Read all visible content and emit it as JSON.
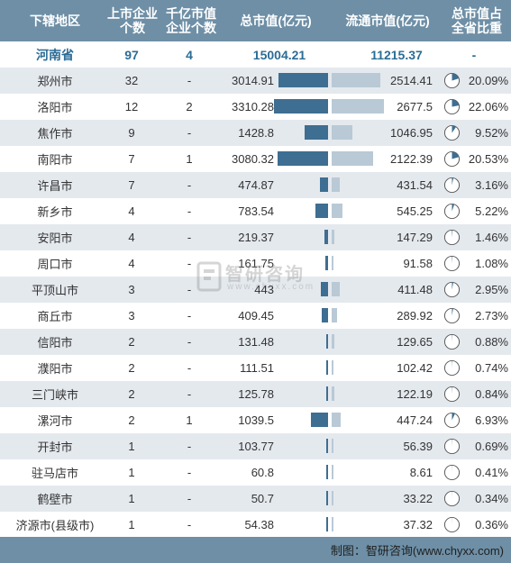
{
  "header": {
    "region": "下辖地区",
    "listed": "上市企业\n个数",
    "big": "千亿市值\n企业个数",
    "mv": "总市值(亿元)",
    "fmv": "流通市值(亿元)",
    "share": "总市值占\n全省比重"
  },
  "total": {
    "region": "河南省",
    "listed": "97",
    "big": "4",
    "mv": "15004.21",
    "fmv": "11215.37",
    "share": "-"
  },
  "rows": [
    {
      "region": "郑州市",
      "listed": "32",
      "big": "-",
      "mv": "3014.91",
      "fmv": "2514.41",
      "share": "20.09%",
      "mv_val": 3014.91,
      "fmv_val": 2514.41,
      "share_val": 20.09
    },
    {
      "region": "洛阳市",
      "listed": "12",
      "big": "2",
      "mv": "3310.28",
      "fmv": "2677.5",
      "share": "22.06%",
      "mv_val": 3310.28,
      "fmv_val": 2677.5,
      "share_val": 22.06
    },
    {
      "region": "焦作市",
      "listed": "9",
      "big": "-",
      "mv": "1428.8",
      "fmv": "1046.95",
      "share": "9.52%",
      "mv_val": 1428.8,
      "fmv_val": 1046.95,
      "share_val": 9.52
    },
    {
      "region": "南阳市",
      "listed": "7",
      "big": "1",
      "mv": "3080.32",
      "fmv": "2122.39",
      "share": "20.53%",
      "mv_val": 3080.32,
      "fmv_val": 2122.39,
      "share_val": 20.53
    },
    {
      "region": "许昌市",
      "listed": "7",
      "big": "-",
      "mv": "474.87",
      "fmv": "431.54",
      "share": "3.16%",
      "mv_val": 474.87,
      "fmv_val": 431.54,
      "share_val": 3.16
    },
    {
      "region": "新乡市",
      "listed": "4",
      "big": "-",
      "mv": "783.54",
      "fmv": "545.25",
      "share": "5.22%",
      "mv_val": 783.54,
      "fmv_val": 545.25,
      "share_val": 5.22
    },
    {
      "region": "安阳市",
      "listed": "4",
      "big": "-",
      "mv": "219.37",
      "fmv": "147.29",
      "share": "1.46%",
      "mv_val": 219.37,
      "fmv_val": 147.29,
      "share_val": 1.46
    },
    {
      "region": "周口市",
      "listed": "4",
      "big": "-",
      "mv": "161.75",
      "fmv": "91.58",
      "share": "1.08%",
      "mv_val": 161.75,
      "fmv_val": 91.58,
      "share_val": 1.08
    },
    {
      "region": "平顶山市",
      "listed": "3",
      "big": "-",
      "mv": "443",
      "fmv": "411.48",
      "share": "2.95%",
      "mv_val": 443,
      "fmv_val": 411.48,
      "share_val": 2.95
    },
    {
      "region": "商丘市",
      "listed": "3",
      "big": "-",
      "mv": "409.45",
      "fmv": "289.92",
      "share": "2.73%",
      "mv_val": 409.45,
      "fmv_val": 289.92,
      "share_val": 2.73
    },
    {
      "region": "信阳市",
      "listed": "2",
      "big": "-",
      "mv": "131.48",
      "fmv": "129.65",
      "share": "0.88%",
      "mv_val": 131.48,
      "fmv_val": 129.65,
      "share_val": 0.88
    },
    {
      "region": "濮阳市",
      "listed": "2",
      "big": "-",
      "mv": "111.51",
      "fmv": "102.42",
      "share": "0.74%",
      "mv_val": 111.51,
      "fmv_val": 102.42,
      "share_val": 0.74
    },
    {
      "region": "三门峡市",
      "listed": "2",
      "big": "-",
      "mv": "125.78",
      "fmv": "122.19",
      "share": "0.84%",
      "mv_val": 125.78,
      "fmv_val": 122.19,
      "share_val": 0.84
    },
    {
      "region": "漯河市",
      "listed": "2",
      "big": "1",
      "mv": "1039.5",
      "fmv": "447.24",
      "share": "6.93%",
      "mv_val": 1039.5,
      "fmv_val": 447.24,
      "share_val": 6.93
    },
    {
      "region": "开封市",
      "listed": "1",
      "big": "-",
      "mv": "103.77",
      "fmv": "56.39",
      "share": "0.69%",
      "mv_val": 103.77,
      "fmv_val": 56.39,
      "share_val": 0.69
    },
    {
      "region": "驻马店市",
      "listed": "1",
      "big": "-",
      "mv": "60.8",
      "fmv": "8.61",
      "share": "0.41%",
      "mv_val": 60.8,
      "fmv_val": 8.61,
      "share_val": 0.41
    },
    {
      "region": "鹤壁市",
      "listed": "1",
      "big": "-",
      "mv": "50.7",
      "fmv": "33.22",
      "share": "0.34%",
      "mv_val": 50.7,
      "fmv_val": 33.22,
      "share_val": 0.34
    },
    {
      "region": "济源市(县级市)",
      "listed": "1",
      "big": "-",
      "mv": "54.38",
      "fmv": "37.32",
      "share": "0.36%",
      "mv_val": 54.38,
      "fmv_val": 37.32,
      "share_val": 0.36
    }
  ],
  "footer": {
    "source": "制图：智研咨询(www.chyxx.com)"
  },
  "watermark": {
    "name": "智研咨询",
    "url": "www.chyxx.com"
  },
  "colors": {
    "header_bg": "#6e8fa6",
    "mv_bar": "#3e6e91",
    "fmv_bar": "#b9c9d6",
    "pie_fill": "#3e6e91",
    "total_text": "#2b6c96",
    "stripe": "#e4e9ee"
  },
  "scale": {
    "mv_max": 3310.28,
    "fmv_max": 2677.5
  }
}
